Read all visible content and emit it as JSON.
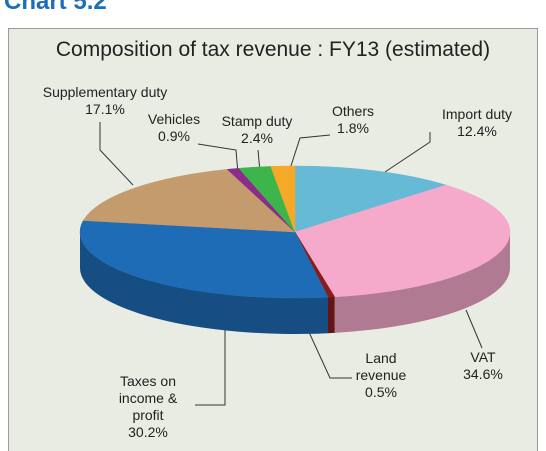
{
  "header": "Chart 5.2",
  "chart_data": {
    "type": "pie3d",
    "title": "Composition of tax revenue : FY13 (estimated)",
    "categories": [
      "Import duty",
      "VAT",
      "Land revenue",
      "Taxes on income & profit",
      "Supplementary duty",
      "Vehicles",
      "Stamp duty",
      "Others"
    ],
    "values": [
      12.4,
      34.6,
      0.5,
      30.2,
      17.1,
      0.9,
      2.4,
      1.8
    ],
    "value_labels": [
      "12.4%",
      "34.6%",
      "0.5%",
      "30.2%",
      "17.1%",
      "0.9%",
      "2.4%",
      "1.8%"
    ],
    "colors": [
      "#66bad6",
      "#f5aacb",
      "#8c1c1c",
      "#1f6cb6",
      "#c49b6c",
      "#8b2c8c",
      "#3db54a",
      "#f6a828"
    ]
  }
}
